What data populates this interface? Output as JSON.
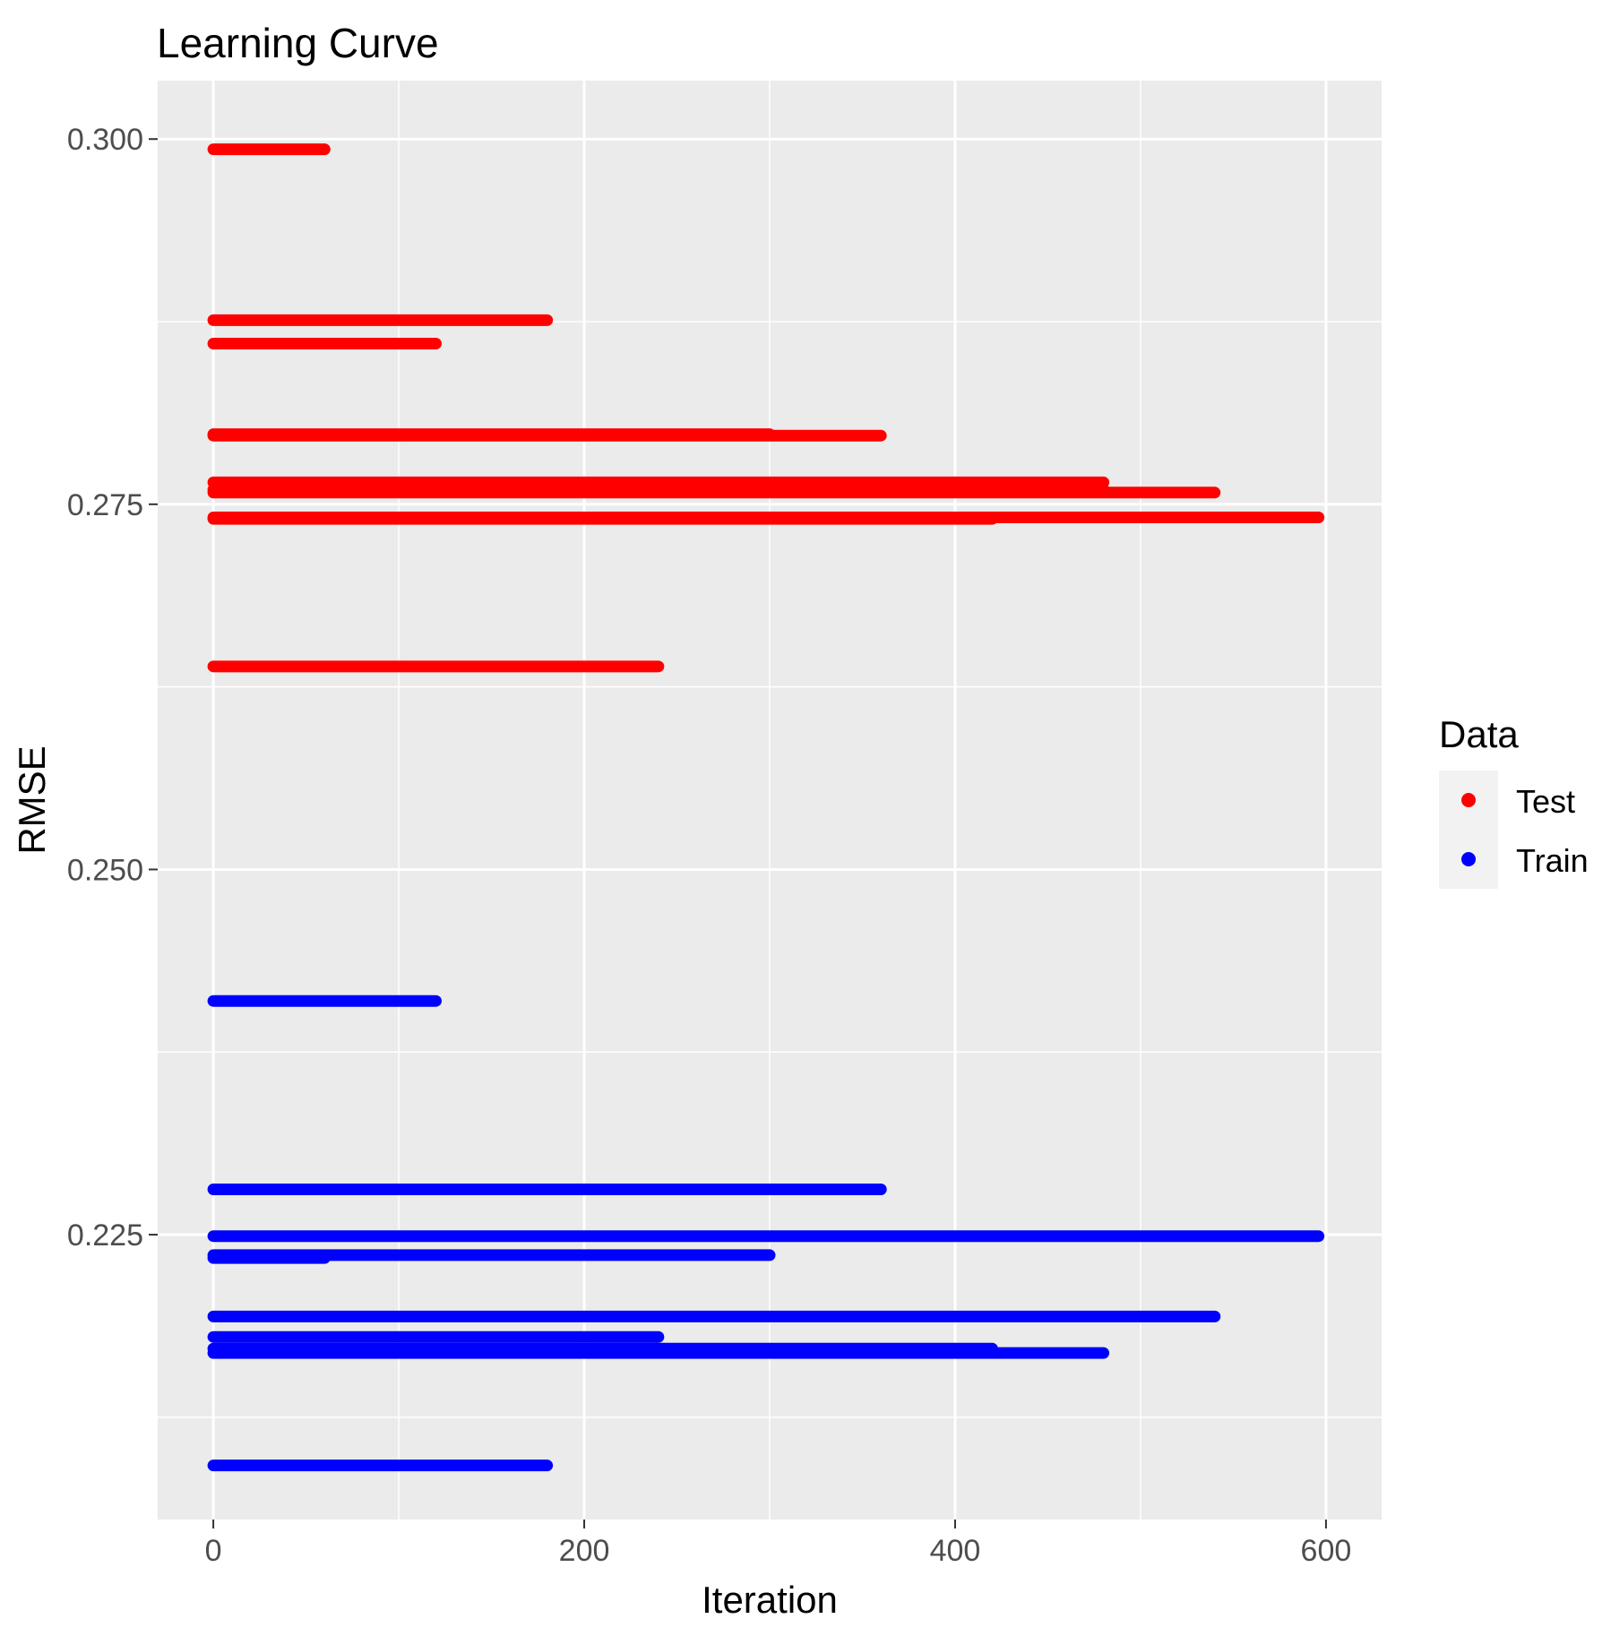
{
  "chart_data": {
    "type": "scatter",
    "title": "Learning Curve",
    "xlabel": "Iteration",
    "ylabel": "RMSE",
    "xlim": [
      -30,
      630
    ],
    "ylim": [
      0.2055,
      0.304
    ],
    "x_ticks": [
      0,
      200,
      400,
      600
    ],
    "x_tick_labels": [
      "0",
      "200",
      "400",
      "600"
    ],
    "y_ticks": [
      0.225,
      0.25,
      0.275,
      0.3
    ],
    "y_tick_labels": [
      "0.225",
      "0.250",
      "0.275",
      "0.300"
    ],
    "grid": true,
    "legend": {
      "title": "Data",
      "position": "right",
      "entries": [
        {
          "label": "Test",
          "color": "#ff0000"
        },
        {
          "label": "Train",
          "color": "#0000ff"
        }
      ]
    },
    "series": [
      {
        "name": "Test",
        "color": "#ff0000",
        "runs": [
          {
            "x_end": 60,
            "rmse": 0.2993
          },
          {
            "x_end": 180,
            "rmse": 0.2876
          },
          {
            "x_end": 120,
            "rmse": 0.286
          },
          {
            "x_end": 300,
            "rmse": 0.2798
          },
          {
            "x_end": 360,
            "rmse": 0.2797
          },
          {
            "x_end": 480,
            "rmse": 0.2765
          },
          {
            "x_end": 480,
            "rmse": 0.276
          },
          {
            "x_end": 540,
            "rmse": 0.2758
          },
          {
            "x_end": 420,
            "rmse": 0.274
          },
          {
            "x_end": 596,
            "rmse": 0.2741
          },
          {
            "x_end": 240,
            "rmse": 0.2639
          }
        ]
      },
      {
        "name": "Train",
        "color": "#0000ff",
        "runs": [
          {
            "x_end": 120,
            "rmse": 0.241
          },
          {
            "x_end": 360,
            "rmse": 0.2281
          },
          {
            "x_end": 596,
            "rmse": 0.2249
          },
          {
            "x_end": 300,
            "rmse": 0.2236
          },
          {
            "x_end": 60,
            "rmse": 0.2234
          },
          {
            "x_end": 540,
            "rmse": 0.2194
          },
          {
            "x_end": 240,
            "rmse": 0.218
          },
          {
            "x_end": 420,
            "rmse": 0.2172
          },
          {
            "x_end": 480,
            "rmse": 0.2169
          },
          {
            "x_end": 180,
            "rmse": 0.2092
          }
        ]
      }
    ]
  }
}
